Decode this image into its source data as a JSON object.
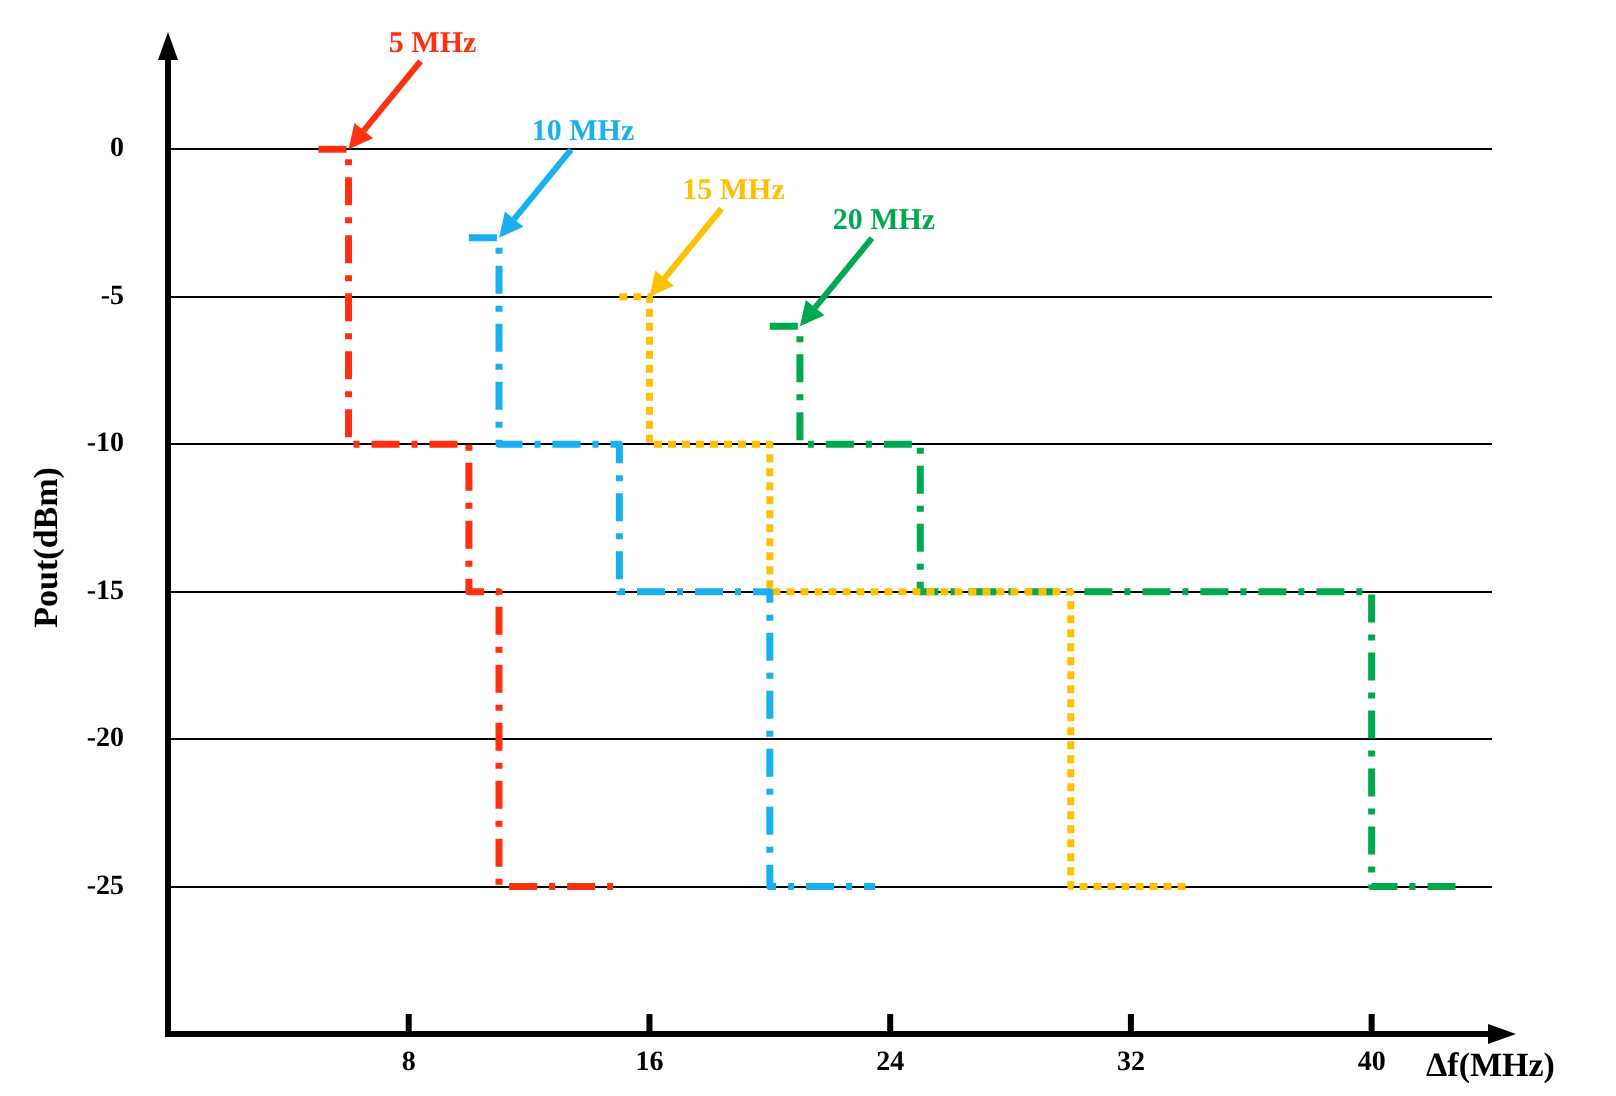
{
  "chart_data": {
    "type": "line",
    "xlabel": "Δf(MHz)",
    "ylabel": "Pout(dBm)",
    "xlim": [
      0,
      44
    ],
    "xticks": [
      8,
      16,
      24,
      32,
      40
    ],
    "ylim": [
      -30,
      3
    ],
    "yticks": [
      0,
      -5,
      -10,
      -15,
      -20,
      -25
    ],
    "grid": "y",
    "legend": false,
    "marker": "none",
    "series": [
      {
        "name": "5 MHz",
        "color": "#ff3010",
        "line_style": "dashed",
        "x": [
          5,
          6,
          6,
          10,
          10,
          11,
          11,
          15
        ],
        "values": [
          0,
          0,
          -10,
          -10,
          -15,
          -15,
          -25,
          -25
        ]
      },
      {
        "name": "10 MHz",
        "color": "#1ab0f0",
        "line_style": "dashed",
        "x": [
          10,
          11,
          11,
          15,
          15,
          20,
          20,
          23.5
        ],
        "values": [
          -3,
          -3,
          -10,
          -10,
          -15,
          -15,
          -25,
          -25
        ]
      },
      {
        "name": "15 MHz",
        "color": "#ffc000",
        "line_style": "dotted",
        "x": [
          15,
          16,
          16,
          20,
          20,
          30,
          30,
          34
        ],
        "values": [
          -5,
          -5,
          -10,
          -10,
          -15,
          -15,
          -25,
          -25
        ]
      },
      {
        "name": "20 MHz",
        "color": "#00a850",
        "line_style": "dashed",
        "x": [
          20,
          21,
          21,
          25,
          25,
          40,
          40,
          43
        ],
        "values": [
          -6,
          -6,
          -10,
          -10,
          -15,
          -15,
          -25,
          -25
        ]
      }
    ]
  }
}
